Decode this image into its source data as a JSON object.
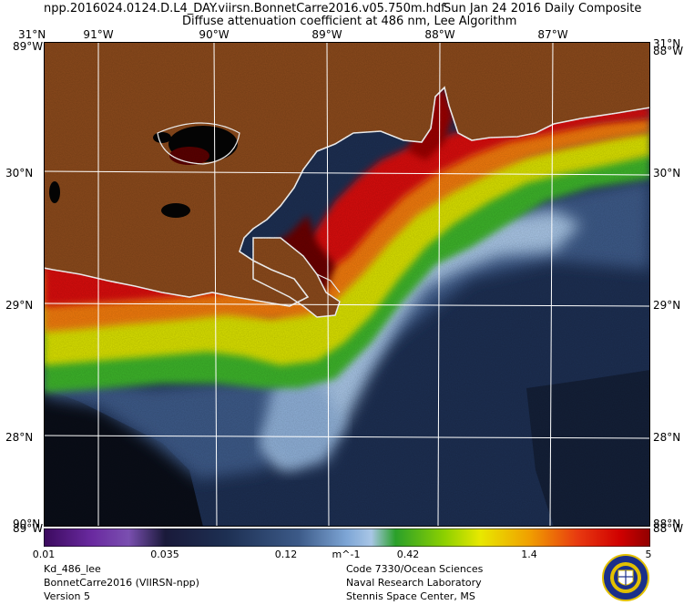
{
  "header": {
    "filename": "npp.2016024.0124.D.L4_DAY.viirsn.BonnetCarre2016.v05.750m.hdf",
    "date": "Sun Jan 24 2016 Daily Composite",
    "subtitle": "Diffuse attenuation coefficient at 486 nm, Lee Algorithm"
  },
  "map": {
    "lon_labels": [
      {
        "text": "91°W",
        "lon": -91
      },
      {
        "text": "90°W",
        "lon": -90
      },
      {
        "text": "89°W",
        "lon": -89
      },
      {
        "text": "88°W",
        "lon": -88
      },
      {
        "text": "87°W",
        "lon": -87
      }
    ],
    "lat_labels": [
      {
        "text": "30°N",
        "lat": 30
      },
      {
        "text": "29°N",
        "lat": 29
      },
      {
        "text": "28°N",
        "lat": 28
      }
    ],
    "corner_labels": {
      "top_left_lat": "31°N",
      "top_left_lon": "89°W",
      "top_right_lat": "31°N",
      "top_right_lon": "88°W",
      "bottom_left_lat": "90°N",
      "bottom_left_lon": "89°W",
      "bottom_right_lat": "88°N",
      "bottom_right_lon": "88°W"
    },
    "colors": {
      "land": "#8b4a1c",
      "ocean_deep": "#1d2f52",
      "ocean_mid": "#3c5a88",
      "plume_light": "#a9c6e6",
      "green": "#3cb32a",
      "yellow": "#d9e000",
      "orange": "#f07a10",
      "red": "#d81010",
      "dark_red": "#6a0000",
      "coast": "#ffffff",
      "grid": "#ffffff"
    }
  },
  "colorbar": {
    "unit": "m^-1",
    "ticks": [
      {
        "label": "0.01",
        "value": 0.01
      },
      {
        "label": "0.035",
        "value": 0.035
      },
      {
        "label": "0.12",
        "value": 0.12
      },
      {
        "label": "0.42",
        "value": 0.42
      },
      {
        "label": "1.4",
        "value": 1.4
      },
      {
        "label": "5",
        "value": 5
      }
    ],
    "range": [
      0.01,
      5
    ],
    "scale": "log"
  },
  "footer": {
    "left": [
      "Kd_486_lee",
      "BonnetCarre2016 (VIIRSN-npp)",
      "Version 5"
    ],
    "right": [
      "Code 7330/Ocean Sciences",
      "Naval Research Laboratory",
      "Stennis Space Center, MS"
    ]
  }
}
